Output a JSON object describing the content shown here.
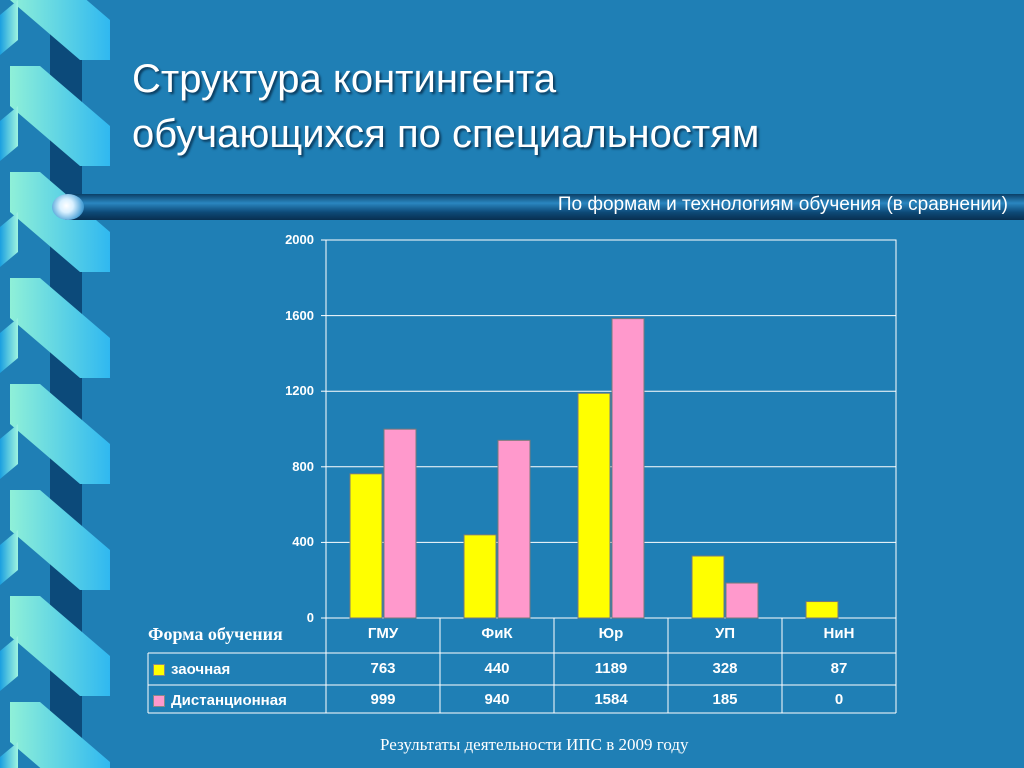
{
  "slide": {
    "title_line1": "Структура контингента",
    "title_line2": "обучающихся по специальностям",
    "subtitle": "По формам и технологиям обучения (в сравнении)",
    "footer": "Результаты деятельности ИПС в 2009 году",
    "table_header_label": "Форма обучения"
  },
  "chart_data": {
    "type": "bar",
    "categories": [
      "ГМУ",
      "ФиК",
      "Юр",
      "УП",
      "НиН"
    ],
    "series": [
      {
        "name": "заочная",
        "values": [
          763,
          440,
          1189,
          328,
          87
        ],
        "color": "#ffff00"
      },
      {
        "name": "Дистанционная",
        "values": [
          999,
          940,
          1584,
          185,
          0
        ],
        "color": "#ff99cc"
      }
    ],
    "ylim": [
      0,
      2000
    ],
    "yticks": [
      "0",
      "400",
      "800",
      "1200",
      "1600",
      "2000"
    ],
    "grid": true,
    "legend": "data-table",
    "values_text": [
      [
        "763",
        "440",
        "1189",
        "328",
        "87"
      ],
      [
        "999",
        "940",
        "1584",
        "185",
        "0"
      ]
    ]
  },
  "colors": {
    "background": "#1f7fb5",
    "gridline": "#ffffff",
    "series1": "#ffff00",
    "series2": "#ff99cc"
  }
}
